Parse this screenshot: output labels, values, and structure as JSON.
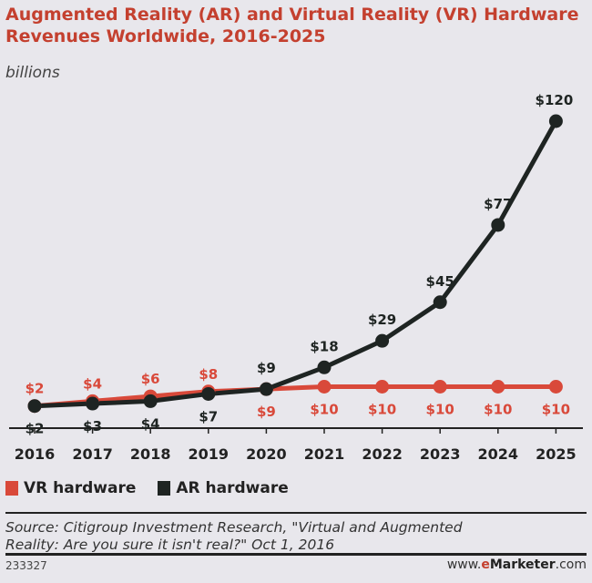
{
  "chart_data": {
    "type": "line",
    "title": "Augmented Reality (AR) and Virtual Reality (VR) Hardware Revenues Worldwide, 2016-2025",
    "subtitle": "billions",
    "categories": [
      "2016",
      "2017",
      "2018",
      "2019",
      "2020",
      "2021",
      "2022",
      "2023",
      "2024",
      "2025"
    ],
    "series": [
      {
        "name": "VR hardware",
        "color": "#d9493a",
        "values": [
          2,
          4,
          6,
          8,
          9,
          10,
          10,
          10,
          10,
          10
        ],
        "labels": [
          "$2",
          "$4",
          "$6",
          "$8",
          "$9",
          "$10",
          "$10",
          "$10",
          "$10",
          "$10"
        ]
      },
      {
        "name": "AR hardware",
        "color": "#1e2422",
        "values": [
          2,
          3,
          4,
          7,
          9,
          18,
          29,
          45,
          77,
          120
        ],
        "labels": [
          "$2",
          "$3",
          "$4",
          "$7",
          "$9",
          "$18",
          "$29",
          "$45",
          "$77",
          "$120"
        ]
      }
    ],
    "ylim": [
      0,
      120
    ],
    "grid": false,
    "legend": "bottom-left"
  },
  "footer": {
    "source": "Source: Citigroup Investment Research, \"Virtual and Augmented Reality: Are you sure it isn't real?\" Oct 1, 2016",
    "id": "233327",
    "brand_prefix": "www.",
    "brand_e": "e",
    "brand_name": "Marketer",
    "brand_suffix": ".com"
  }
}
